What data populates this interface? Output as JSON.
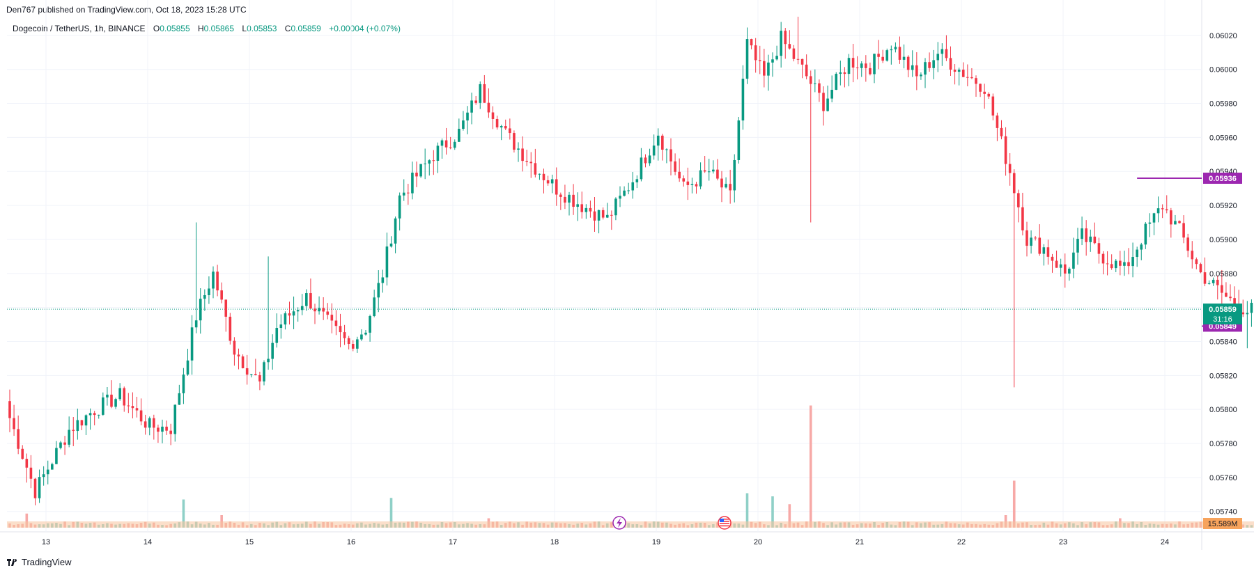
{
  "header": {
    "published": "Den767 published on TradingView.com, Oct 18, 2023 15:28 UTC"
  },
  "legend": {
    "symbol": "Dogecoin / TetherUS, 1h, BINANCE",
    "open_label": "O",
    "open": "0.05855",
    "high_label": "H",
    "high": "0.05865",
    "low_label": "L",
    "low": "0.05853",
    "close_label": "C",
    "close": "0.05859",
    "change": "+0.00004 (+0.07%)"
  },
  "footer": {
    "brand": "TradingView"
  },
  "colors": {
    "up": "#089981",
    "down": "#f23645",
    "level": "#9c27b0",
    "vol_up": "#8fd0c7",
    "vol_down": "#f7a9a7",
    "vol_ma": "#f7c59f"
  },
  "chart_data": {
    "type": "candlestick",
    "x_ticks": [
      "13",
      "14",
      "15",
      "16",
      "17",
      "18",
      "19",
      "20",
      "21",
      "22",
      "23",
      "24"
    ],
    "y_ticks": [
      "0.06020",
      "0.06000",
      "0.05980",
      "0.05960",
      "0.05940",
      "0.05920",
      "0.05900",
      "0.05880",
      "0.05860",
      "0.05840",
      "0.05820",
      "0.05800",
      "0.05780",
      "0.05760",
      "0.05740"
    ],
    "ylim": [
      0.05728,
      0.06031
    ],
    "last_price": {
      "value": "0.05859",
      "countdown": "31:16"
    },
    "levels": [
      {
        "value": 0.05936,
        "label": "0.05936"
      },
      {
        "value": 0.05849,
        "label": "0.05849"
      }
    ],
    "volume": {
      "current_label": "15.589M"
    },
    "anchors": [
      [
        0,
        0.05795
      ],
      [
        6,
        0.05752
      ],
      [
        14,
        0.05788
      ],
      [
        20,
        0.058
      ],
      [
        26,
        0.05808
      ],
      [
        33,
        0.0579
      ],
      [
        38,
        0.05789
      ],
      [
        44,
        0.05855
      ],
      [
        48,
        0.0588
      ],
      [
        53,
        0.05835
      ],
      [
        59,
        0.05815
      ],
      [
        63,
        0.05848
      ],
      [
        70,
        0.05866
      ],
      [
        76,
        0.05848
      ],
      [
        80,
        0.05838
      ],
      [
        84,
        0.05848
      ],
      [
        88,
        0.0588
      ],
      [
        92,
        0.05925
      ],
      [
        100,
        0.0595
      ],
      [
        106,
        0.05963
      ],
      [
        111,
        0.05988
      ],
      [
        117,
        0.05962
      ],
      [
        123,
        0.05945
      ],
      [
        129,
        0.0593
      ],
      [
        135,
        0.0592
      ],
      [
        141,
        0.05912
      ],
      [
        147,
        0.05935
      ],
      [
        153,
        0.05963
      ],
      [
        159,
        0.0593
      ],
      [
        165,
        0.0594
      ],
      [
        170,
        0.05925
      ],
      [
        174,
        0.06015
      ],
      [
        178,
        0.05995
      ],
      [
        182,
        0.06018
      ],
      [
        187,
        0.06
      ],
      [
        192,
        0.0598
      ],
      [
        198,
        0.06005
      ],
      [
        203,
        0.06002
      ],
      [
        208,
        0.06015
      ],
      [
        214,
        0.05995
      ],
      [
        219,
        0.0601
      ],
      [
        225,
        0.05998
      ],
      [
        230,
        0.0599
      ],
      [
        236,
        0.0594
      ],
      [
        240,
        0.059
      ],
      [
        244,
        0.05895
      ],
      [
        249,
        0.0588
      ],
      [
        253,
        0.05902
      ],
      [
        258,
        0.0589
      ],
      [
        263,
        0.05882
      ],
      [
        268,
        0.05905
      ],
      [
        272,
        0.0592
      ],
      [
        276,
        0.05905
      ],
      [
        281,
        0.0588
      ],
      [
        287,
        0.05866
      ],
      [
        292,
        0.05858
      ],
      [
        294,
        0.05859
      ]
    ],
    "volume_spikes": [
      {
        "i": 4,
        "v": 0.45
      },
      {
        "i": 41,
        "v": 0.9
      },
      {
        "i": 50,
        "v": 0.4
      },
      {
        "i": 90,
        "v": 0.95
      },
      {
        "i": 113,
        "v": 0.3
      },
      {
        "i": 174,
        "v": 1.1
      },
      {
        "i": 180,
        "v": 1.0
      },
      {
        "i": 184,
        "v": 0.75
      },
      {
        "i": 189,
        "v": 3.9
      },
      {
        "i": 237,
        "v": 1.5
      },
      {
        "i": 235,
        "v": 0.4
      },
      {
        "i": 262,
        "v": 0.3
      }
    ]
  }
}
